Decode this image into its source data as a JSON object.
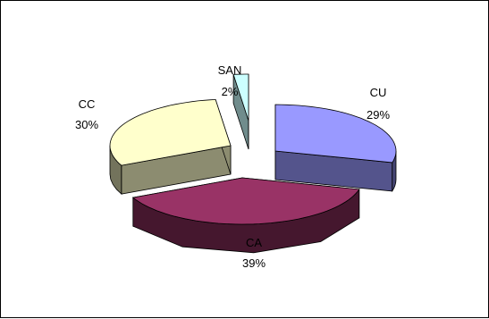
{
  "chart_data": {
    "type": "pie",
    "style": "3d-exploded",
    "categories": [
      "CU",
      "CA",
      "CC",
      "SAN"
    ],
    "values": [
      29,
      39,
      30,
      2
    ],
    "labels": [
      {
        "name": "CU",
        "percent": "29%"
      },
      {
        "name": "CA",
        "percent": "39%"
      },
      {
        "name": "CC",
        "percent": "30%"
      },
      {
        "name": "SAN",
        "percent": "2%"
      }
    ],
    "colors": {
      "CU": "#9999FF",
      "CA": "#993366",
      "CC": "#FFFFCC",
      "SAN": "#CCFFFF"
    },
    "title": "",
    "legend": "none"
  }
}
